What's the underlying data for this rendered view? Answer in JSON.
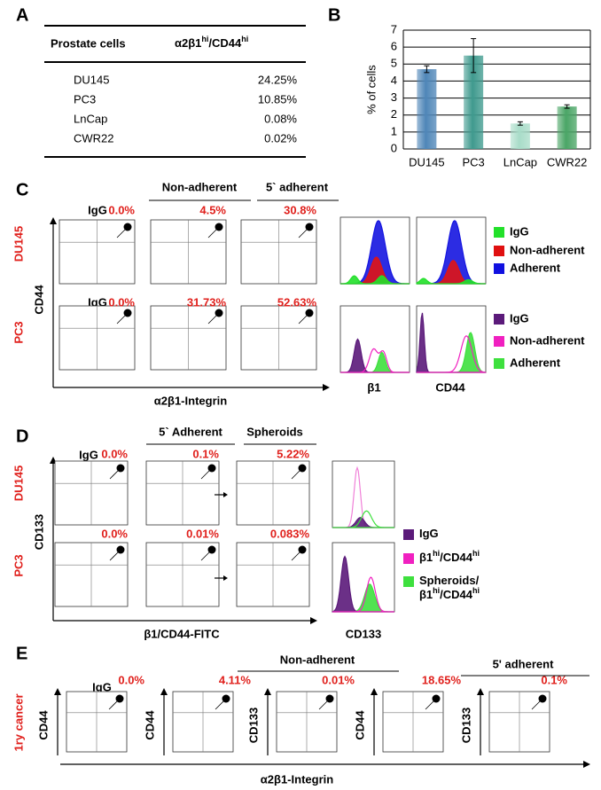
{
  "panel_labels": [
    "A",
    "B",
    "C",
    "D",
    "E"
  ],
  "table": {
    "header": [
      "Prostate cells",
      [
        "α2β1",
        "hi",
        "/CD44",
        "hi"
      ]
    ],
    "rows": [
      [
        "DU145",
        "24.25%"
      ],
      [
        "PC3",
        "10.85%"
      ],
      [
        "LnCap",
        "0.08%"
      ],
      [
        "CWR22",
        "0.02%"
      ]
    ]
  },
  "chart_data": {
    "type": "bar",
    "ylabel": "% of cells",
    "categories": [
      "DU145",
      "PC3",
      "LnCap",
      "CWR22"
    ],
    "values": [
      4.7,
      5.5,
      1.5,
      2.5
    ],
    "errors": [
      0.2,
      1.0,
      0.1,
      0.1
    ],
    "colors": [
      "#4f86b8",
      "#3f9a8e",
      "#a8dcc8",
      "#4aa566"
    ],
    "ylim": [
      0,
      7
    ],
    "yticks": [
      0,
      1,
      2,
      3,
      4,
      5,
      6,
      7
    ],
    "grid": true
  },
  "panel_c": {
    "group_headers": [
      "Non-adherent",
      "5` adherent"
    ],
    "rows": [
      {
        "cell_line": "DU145",
        "igg": "IgG",
        "percents": [
          "0.0%",
          "4.5%",
          "30.8%"
        ],
        "legend": [
          "IgG",
          "Non-adherent",
          "Adherent"
        ]
      },
      {
        "cell_line": "PC3",
        "igg": "IgG",
        "percents": [
          "0.0%",
          "31.73%",
          "52.63%"
        ],
        "legend": [
          "IgG",
          "Non-adherent",
          "Adherent"
        ]
      }
    ],
    "y_axis": "CD44",
    "x_axis": "α2β1-Integrin",
    "histogram_labels": [
      "β1",
      "CD44"
    ]
  },
  "panel_d": {
    "group_headers": [
      "5` Adherent",
      "Spheroids"
    ],
    "igg": "IgG",
    "rows": [
      {
        "cell_line": "DU145",
        "percents": [
          "0.0%",
          "0.1%",
          "5.22%"
        ]
      },
      {
        "cell_line": "PC3",
        "percents": [
          "0.0%",
          "0.01%",
          "0.083%"
        ]
      }
    ],
    "y_axis": "CD133",
    "x_axis": "β1/CD44-FITC",
    "histogram_label": "CD133",
    "legend": [
      [
        [
          "IgG"
        ]
      ],
      [
        [
          "β1",
          "hi",
          "/CD44",
          "hi"
        ]
      ],
      [
        [
          "Spheroids/"
        ],
        [
          "β1",
          "hi",
          "/CD44",
          "hi"
        ]
      ]
    ]
  },
  "panel_e": {
    "sample": "1ry cancer",
    "igg": "IgG",
    "group_headers": [
      "Non-adherent",
      "5' adherent"
    ],
    "plots": [
      {
        "y_axis": "CD44",
        "percent": "0.0%"
      },
      {
        "y_axis": "CD44",
        "percent": "4.11%"
      },
      {
        "y_axis": "CD133",
        "percent": "0.01%"
      },
      {
        "y_axis": "CD44",
        "percent": "18.65%"
      },
      {
        "y_axis": "CD133",
        "percent": "0.1%"
      }
    ],
    "x_axis": "α2β1-Integrin"
  }
}
